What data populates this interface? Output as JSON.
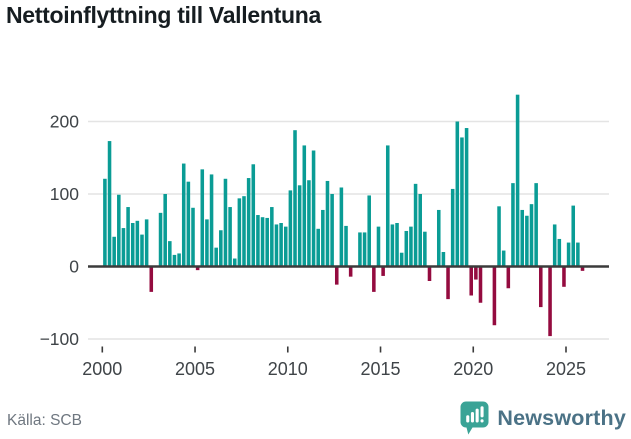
{
  "title": "Nettoinflyttning till Vallentuna",
  "source": "Källa: SCB",
  "brand": {
    "name": "Newsworthy",
    "icon": "newsworthy-bubble-chart-icon"
  },
  "colors": {
    "bar_positive": "#0a9c95",
    "bar_negative": "#940b3f",
    "axis_line": "#3b3b3b",
    "gridline": "#e4e4e4",
    "tick_text": "#3f4448",
    "brand_teal": "#3aa396",
    "brand_text": "#4b7286"
  },
  "chart_data": {
    "type": "bar",
    "title": "Nettoinflyttning till Vallentuna",
    "frequency": "quarterly",
    "start_period": "2000 Q1",
    "end_period": "2025 Q4",
    "xlabel": "",
    "ylabel": "",
    "ylim": [
      -120,
      270
    ],
    "grid": "horizontal",
    "y_ticks": [
      200,
      100,
      0,
      -100
    ],
    "x_tick_labels": [
      "2000",
      "2005",
      "2010",
      "2015",
      "2020",
      "2025"
    ],
    "series": [
      {
        "name": "Nettoinflyttning",
        "values": [
          121,
          173,
          41,
          99,
          53,
          82,
          60,
          63,
          44,
          65,
          -35,
          0,
          74,
          100,
          35,
          16,
          18,
          142,
          117,
          81,
          -5,
          134,
          65,
          127,
          26,
          50,
          121,
          82,
          11,
          94,
          97,
          122,
          141,
          71,
          68,
          67,
          82,
          58,
          60,
          55,
          105,
          188,
          112,
          167,
          119,
          160,
          52,
          78,
          118,
          100,
          -25,
          109,
          56,
          -14,
          0,
          47,
          47,
          98,
          -35,
          55,
          -13,
          167,
          58,
          60,
          19,
          49,
          55,
          114,
          100,
          48,
          -20,
          0,
          78,
          20,
          -45,
          107,
          200,
          178,
          191,
          -40,
          -18,
          -50,
          0,
          0,
          -81,
          83,
          22,
          -30,
          115,
          237,
          78,
          70,
          86,
          115,
          -56,
          0,
          -96,
          58,
          38,
          -28,
          33,
          84,
          33,
          -6
        ]
      }
    ]
  }
}
